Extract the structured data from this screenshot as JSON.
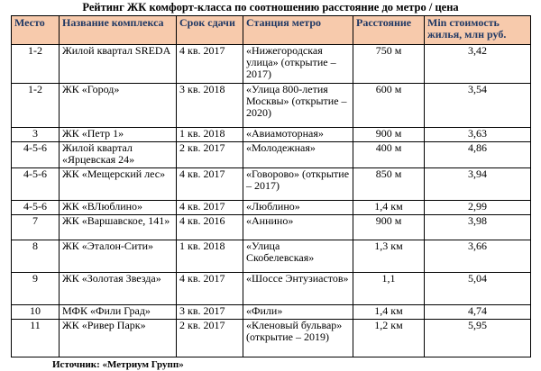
{
  "title": "Рейтинг ЖК комфорт-класса по соотношению расстояние до метро / цена",
  "columns": [
    "Место",
    "Название комплекса",
    "Срок сдачи",
    "Станция метро",
    "Расстояние",
    "Min стоимость жилья, млн руб."
  ],
  "rows": [
    {
      "place": "1-2",
      "name": "Жилой квартал SREDA",
      "term": "4 кв. 2017",
      "station": "«Нижегородская улица» (открытие – 2017)",
      "distance": "750 м",
      "price": "3,42"
    },
    {
      "place": "1-2",
      "name": "ЖК «Город»",
      "term": "3 кв. 2018",
      "station": "«Улица 800-летия Москвы» (открытие – 2020)",
      "distance": "600 м",
      "price": "3,54"
    },
    {
      "place": "3",
      "name": "ЖК «Петр 1»",
      "term": "1 кв. 2018",
      "station": "«Авиамоторная»",
      "distance": "900 м",
      "price": "3,63"
    },
    {
      "place": "4-5-6",
      "name": "Жилой квартал «Ярцевская 24»",
      "term": "2 кв. 2017",
      "station": "«Молодежная»",
      "distance": "400 м",
      "price": "4,86"
    },
    {
      "place": "4-5-6",
      "name": "ЖК «Мещерский лес»",
      "term": "4 кв. 2017",
      "station": "«Говорово» (открытие – 2017)",
      "distance": "850 м",
      "price": "3,94"
    },
    {
      "place": "4-5-6",
      "name": "ЖК «ВЛюблино»",
      "term": "4 кв. 2017",
      "station": "«Люблино»",
      "distance": "1,4 км",
      "price": "2,99"
    },
    {
      "place": "7",
      "name": "ЖК «Варшавское, 141»",
      "term": "4 кв. 2016",
      "station": "«Аннино»",
      "distance": "900 м",
      "price": "3,98"
    },
    {
      "place": "8",
      "name": "ЖК «Эталон-Сити»",
      "term": "1 кв. 2018",
      "station": "«Улица Скобелевская»",
      "distance": "1,3 км",
      "price": "3,66"
    },
    {
      "place": "9",
      "name": "ЖК «Золотая Звезда»",
      "term": "4 кв. 2017",
      "station": "«Шоссе Энтузиастов»",
      "distance": "1,1",
      "price": "5,04"
    },
    {
      "place": "10",
      "name": "МФК «Фили Град»",
      "term": "3 кв. 2017",
      "station": "«Фили»",
      "distance": "1,4 км",
      "price": "4,74"
    },
    {
      "place": "11",
      "name": "ЖК «Ривер Парк»",
      "term": "2 кв. 2017",
      "station": "«Кленовый бульвар» (открытие – 2019)",
      "distance": "1,2 км",
      "price": "5,95"
    }
  ],
  "source": "Источник: «Метриум Групп»"
}
